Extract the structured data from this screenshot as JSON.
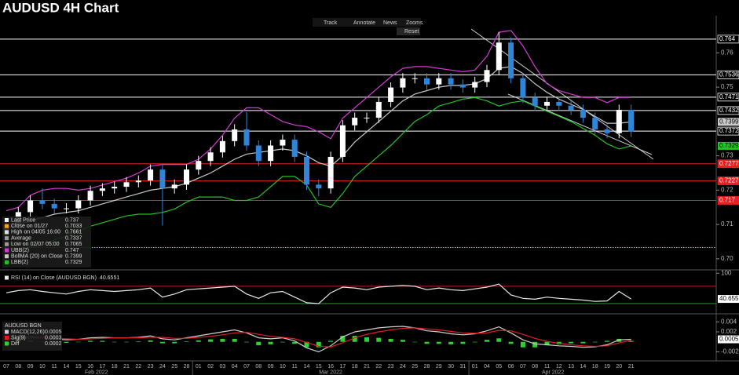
{
  "header": {
    "title": "AUDUSD 4H Chart"
  },
  "toolbar": [
    "Track",
    "Annotate",
    "News",
    "Zooms",
    "Reset"
  ],
  "chart_data": [
    {
      "type": "candlestick",
      "categories": [
        "07",
        "08",
        "09",
        "10",
        "11",
        "14",
        "15",
        "16",
        "17",
        "18",
        "21",
        "22",
        "23",
        "24",
        "25",
        "28",
        "01",
        "02",
        "03",
        "04",
        "07",
        "08",
        "09",
        "10",
        "11",
        "14",
        "15",
        "16",
        "17",
        "18",
        "21",
        "22",
        "23",
        "24",
        "25",
        "28",
        "29",
        "30",
        "31",
        "01",
        "04",
        "05",
        "06",
        "07",
        "08",
        "11",
        "12",
        "13",
        "14",
        "18",
        "19",
        "20",
        "21"
      ],
      "months": [
        "Feb 2022",
        "Mar 2022",
        "Apr 2022"
      ],
      "open": [
        0.707,
        0.71,
        0.7136,
        0.717,
        0.716,
        0.7147,
        0.7147,
        0.717,
        0.7198,
        0.7205,
        0.721,
        0.7223,
        0.7228,
        0.726,
        0.7205,
        0.7216,
        0.726,
        0.7285,
        0.731,
        0.7343,
        0.7377,
        0.733,
        0.7285,
        0.733,
        0.7347,
        0.7297,
        0.7216,
        0.7205,
        0.7297,
        0.7389,
        0.7411,
        0.7411,
        0.7457,
        0.7499,
        0.7526,
        0.7526,
        0.7508,
        0.7526,
        0.7508,
        0.7499,
        0.7515,
        0.755,
        0.763,
        0.7526,
        0.7469,
        0.7446,
        0.7457,
        0.7446,
        0.7434,
        0.7411,
        0.7377,
        0.7366,
        0.7434
      ],
      "high": [
        0.7115,
        0.7151,
        0.7185,
        0.7205,
        0.7175,
        0.7162,
        0.7185,
        0.7213,
        0.722,
        0.7225,
        0.7238,
        0.7243,
        0.7275,
        0.7275,
        0.7231,
        0.7275,
        0.73,
        0.7325,
        0.7358,
        0.7392,
        0.7428,
        0.7345,
        0.7345,
        0.7362,
        0.7362,
        0.7312,
        0.7231,
        0.7312,
        0.7404,
        0.7426,
        0.7426,
        0.7472,
        0.7514,
        0.7541,
        0.7541,
        0.7541,
        0.7541,
        0.7541,
        0.7523,
        0.753,
        0.7565,
        0.7661,
        0.7645,
        0.7541,
        0.7484,
        0.7472,
        0.7472,
        0.7461,
        0.7449,
        0.7426,
        0.7392,
        0.7449,
        0.7449
      ],
      "low": [
        0.7065,
        0.7085,
        0.7121,
        0.7145,
        0.7132,
        0.7132,
        0.7132,
        0.7155,
        0.7183,
        0.719,
        0.7195,
        0.7208,
        0.7213,
        0.7097,
        0.719,
        0.7201,
        0.7245,
        0.727,
        0.7295,
        0.7328,
        0.7315,
        0.727,
        0.727,
        0.7315,
        0.7282,
        0.7201,
        0.7182,
        0.719,
        0.7282,
        0.7374,
        0.7396,
        0.7396,
        0.7442,
        0.7484,
        0.7511,
        0.7493,
        0.7493,
        0.7493,
        0.7484,
        0.7484,
        0.75,
        0.7535,
        0.7511,
        0.7454,
        0.7431,
        0.7431,
        0.7431,
        0.7419,
        0.7396,
        0.7362,
        0.7351,
        0.7351,
        0.7355
      ],
      "close": [
        0.71,
        0.7136,
        0.717,
        0.716,
        0.7147,
        0.7147,
        0.717,
        0.7198,
        0.7205,
        0.721,
        0.7223,
        0.7228,
        0.726,
        0.7205,
        0.7216,
        0.726,
        0.7285,
        0.731,
        0.7343,
        0.7377,
        0.733,
        0.7285,
        0.733,
        0.7347,
        0.7297,
        0.7216,
        0.7205,
        0.7297,
        0.7389,
        0.7411,
        0.7411,
        0.7457,
        0.7499,
        0.7526,
        0.7526,
        0.7508,
        0.7526,
        0.7508,
        0.7499,
        0.7515,
        0.755,
        0.763,
        0.7526,
        0.7469,
        0.7446,
        0.7457,
        0.7446,
        0.7434,
        0.7411,
        0.7377,
        0.7366,
        0.7434,
        0.737
      ],
      "up_color": "#ffffff",
      "down_color": "#2f86d8",
      "ylim": [
        0.697,
        0.769
      ],
      "yticks": [
        0.76,
        0.75,
        0.73,
        0.72,
        0.71,
        {
          "value": 0.7,
          "label": "0.70"
        }
      ],
      "level_labels": true,
      "levels": [
        {
          "value": 0.764,
          "color": "#ffffff"
        },
        {
          "value": 0.7536,
          "color": "#ffffff"
        },
        {
          "value": 0.7471,
          "color": "#ffffff"
        },
        {
          "value": 0.7432,
          "color": "#ffffff"
        },
        {
          "value": 0.7372,
          "color": "#ffffff"
        },
        {
          "value": 0.7277,
          "color": "#e82020"
        },
        {
          "value": 0.7227,
          "color": "#e82020"
        },
        {
          "value": 0.717,
          "color": "#e82020"
        }
      ],
      "stats": [
        {
          "name": "Last Price",
          "value": 0.737,
          "color": "#ffffff"
        },
        {
          "name": "Close on 01/27",
          "value": 0.7033,
          "color": "#f0a020",
          "line": "dotted"
        },
        {
          "name": "High on 04/05 16:00",
          "value": 0.7661,
          "color": "#dddddd"
        },
        {
          "name": "Average",
          "value": 0.7337,
          "color": "#999999"
        },
        {
          "name": "Low on 02/07 05:00",
          "value": 0.7065,
          "color": "#999999"
        }
      ],
      "series": [
        {
          "name": "UBB(2)",
          "color": "#d33cd3",
          "values": [
            0.714,
            0.715,
            0.7185,
            0.72,
            0.7205,
            0.7205,
            0.72,
            0.7205,
            0.7215,
            0.7225,
            0.7235,
            0.725,
            0.727,
            0.7275,
            0.7275,
            0.7275,
            0.729,
            0.732,
            0.736,
            0.741,
            0.744,
            0.744,
            0.742,
            0.74,
            0.739,
            0.7385,
            0.737,
            0.735,
            0.741,
            0.744,
            0.747,
            0.75,
            0.753,
            0.7555,
            0.756,
            0.756,
            0.7555,
            0.755,
            0.7545,
            0.755,
            0.759,
            0.766,
            0.7665,
            0.762,
            0.756,
            0.751,
            0.749,
            0.748,
            0.747,
            0.747,
            0.7455,
            0.747,
            0.747
          ]
        },
        {
          "name": "BollMA (20) on Close",
          "color": "#c8c8c8",
          "tag": true,
          "values": [
            0.709,
            0.71,
            0.711,
            0.712,
            0.713,
            0.7135,
            0.714,
            0.715,
            0.716,
            0.717,
            0.718,
            0.719,
            0.72,
            0.7205,
            0.721,
            0.722,
            0.7235,
            0.725,
            0.727,
            0.729,
            0.7305,
            0.731,
            0.7315,
            0.732,
            0.7315,
            0.73,
            0.728,
            0.727,
            0.73,
            0.734,
            0.737,
            0.74,
            0.743,
            0.746,
            0.748,
            0.749,
            0.75,
            0.7505,
            0.7505,
            0.751,
            0.7525,
            0.7555,
            0.756,
            0.754,
            0.751,
            0.7485,
            0.7465,
            0.745,
            0.7435,
            0.7415,
            0.7395,
            0.7395,
            0.7399
          ]
        },
        {
          "name": "LBB(2)",
          "color": "#22c322",
          "tag": true,
          "values": [
            0.704,
            0.705,
            0.7035,
            0.704,
            0.7055,
            0.7065,
            0.708,
            0.7095,
            0.7105,
            0.7115,
            0.7125,
            0.713,
            0.713,
            0.7135,
            0.7145,
            0.7165,
            0.718,
            0.718,
            0.718,
            0.717,
            0.717,
            0.718,
            0.721,
            0.724,
            0.724,
            0.7215,
            0.716,
            0.715,
            0.719,
            0.724,
            0.727,
            0.73,
            0.733,
            0.7365,
            0.74,
            0.742,
            0.7445,
            0.7455,
            0.7465,
            0.747,
            0.746,
            0.7445,
            0.7455,
            0.746,
            0.7445,
            0.743,
            0.7415,
            0.74,
            0.738,
            0.736,
            0.7335,
            0.732,
            0.7329
          ]
        }
      ]
    },
    {
      "type": "line",
      "ylim": [
        10,
        106
      ],
      "yticks": [
        100
      ],
      "levels": [
        {
          "value": 70,
          "color": "#c02020"
        },
        {
          "value": 30,
          "color": "#20a020"
        }
      ],
      "series": [
        {
          "name": "RSI (14) on Close (AUDUSD BGN)",
          "color": "#e8e8e8",
          "tag": true,
          "values": [
            55,
            60,
            62,
            58,
            55,
            52,
            58,
            62,
            60,
            58,
            60,
            62,
            66,
            45,
            52,
            62,
            64,
            66,
            68,
            70,
            52,
            42,
            55,
            58,
            45,
            32,
            30,
            55,
            68,
            66,
            62,
            68,
            70,
            72,
            70,
            62,
            66,
            62,
            60,
            64,
            68,
            75,
            50,
            42,
            40,
            45,
            42,
            40,
            38,
            35,
            36,
            58,
            40.6551
          ]
        }
      ]
    },
    {
      "type": "macd",
      "title": "AUDUSD BGN",
      "ylim": [
        -0.0035,
        0.0053
      ],
      "yticks": [
        0.004,
        0.002,
        -0.002
      ],
      "series": [
        {
          "name": "MACD(12,26)",
          "color": "#d0d0d0",
          "tag": true,
          "values": [
            0.0005,
            0.0008,
            0.001,
            0.0009,
            0.0006,
            0.0004,
            0.0005,
            0.0008,
            0.0009,
            0.0008,
            0.0008,
            0.0009,
            0.0012,
            0.0006,
            0.0004,
            0.0008,
            0.0012,
            0.0016,
            0.002,
            0.0024,
            0.0018,
            0.0008,
            0.0006,
            0.0008,
            0.0002,
            -0.0012,
            -0.002,
            -0.0008,
            0.001,
            0.002,
            0.0024,
            0.0028,
            0.003,
            0.0031,
            0.0028,
            0.0022,
            0.002,
            0.0016,
            0.0014,
            0.0016,
            0.0022,
            0.003,
            0.0018,
            0.0004,
            -0.0004,
            -0.0006,
            -0.0008,
            -0.0009,
            -0.0011,
            -0.001,
            -0.0006,
            0.0004,
            0.0005
          ]
        },
        {
          "name": "Sig(9)",
          "color": "#e02020",
          "values": [
            0.0004,
            0.0005,
            0.0007,
            0.0008,
            0.0007,
            0.0006,
            0.0005,
            0.0006,
            0.0007,
            0.0008,
            0.0008,
            0.0008,
            0.0009,
            0.0009,
            0.0007,
            0.0007,
            0.0009,
            0.0011,
            0.0014,
            0.0018,
            0.0019,
            0.0015,
            0.0011,
            0.0009,
            0.0006,
            -0.0001,
            -0.0009,
            -0.001,
            -0.0002,
            0.0008,
            0.0015,
            0.002,
            0.0024,
            0.0027,
            0.0028,
            0.0026,
            0.0024,
            0.0021,
            0.0018,
            0.0017,
            0.0018,
            0.0023,
            0.0022,
            0.0015,
            0.0007,
            0.0001,
            -0.0003,
            -0.0006,
            -0.0008,
            -0.0009,
            -0.0008,
            -0.0002,
            0.0003
          ]
        },
        {
          "name": "Diff",
          "color": "#30d030",
          "type": "bar",
          "values": [
            0.0001,
            0.0003,
            0.0003,
            0.0001,
            -0.0001,
            -0.0002,
            0,
            0.0002,
            0.0002,
            0,
            0,
            0.0001,
            0.0003,
            -0.0003,
            -0.0003,
            0.0001,
            0.0003,
            0.0005,
            0.0006,
            0.0006,
            -0.0001,
            -0.0007,
            -0.0005,
            -0.0001,
            -0.0004,
            -0.0011,
            -0.0011,
            0.0002,
            0.0012,
            0.0012,
            0.0009,
            0.0008,
            0.0006,
            0.0004,
            0,
            -0.0004,
            -0.0004,
            -0.0005,
            -0.0004,
            -0.0001,
            0.0004,
            0.0007,
            -0.0004,
            -0.0011,
            -0.0011,
            -0.0007,
            -0.0005,
            -0.0003,
            -0.0003,
            -0.0001,
            0.0002,
            0.0006,
            0.0002
          ]
        }
      ]
    }
  ]
}
